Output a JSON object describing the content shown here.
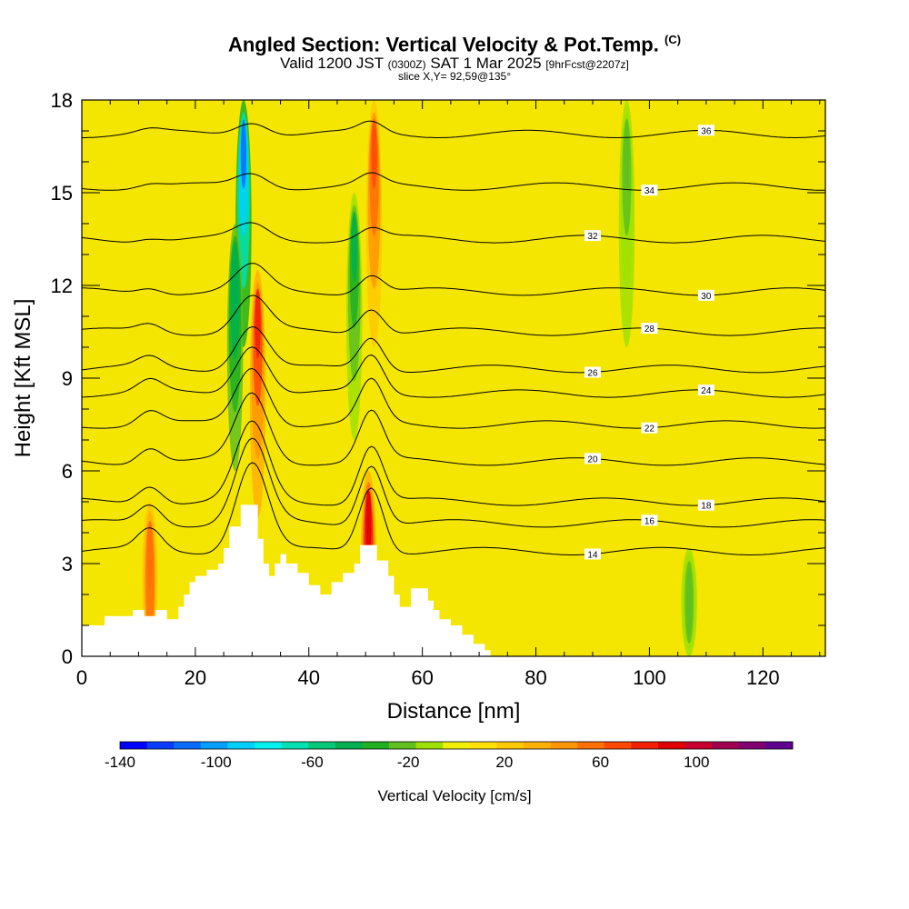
{
  "title": {
    "main": "Angled Section: Vertical Velocity & Pot.Temp.",
    "main_suffix": "(C)",
    "valid_prefix": "Valid 1200 JST",
    "valid_zulu": "(0300Z)",
    "valid_date": "SAT 1 Mar 2025",
    "forecast": "[9hrFcst@2207z]",
    "slice": "slice X,Y= 92,59@135°"
  },
  "chart_data": {
    "type": "heatmap",
    "xlabel": "Distance [nm]",
    "ylabel": "Height [Kft MSL]",
    "xlim": [
      0,
      131
    ],
    "ylim": [
      0,
      18
    ],
    "x_ticks": [
      "0",
      "20",
      "40",
      "60",
      "80",
      "100",
      "120"
    ],
    "x_tick_values": [
      0,
      20,
      40,
      60,
      80,
      100,
      120
    ],
    "y_ticks": [
      "0",
      "3",
      "6",
      "9",
      "12",
      "15",
      "18"
    ],
    "y_tick_values": [
      0,
      3,
      6,
      9,
      12,
      15,
      18
    ],
    "colorbar": {
      "label": "Vertical Velocity [cm/s]",
      "tick_labels": [
        "-140",
        "-100",
        "-60",
        "-20",
        "20",
        "60",
        "100"
      ],
      "tick_values": [
        -140,
        -100,
        -60,
        -20,
        20,
        60,
        100
      ],
      "range": [
        -140,
        140
      ],
      "colors": [
        "#0000ff",
        "#0a3cff",
        "#0a6cff",
        "#00a0ff",
        "#00d0ff",
        "#00f0f0",
        "#00e0b0",
        "#00c878",
        "#00b050",
        "#20b020",
        "#60c020",
        "#a0e000",
        "#f0f000",
        "#ffe000",
        "#ffc800",
        "#ffb000",
        "#ff9600",
        "#ff7000",
        "#ff4800",
        "#f02000",
        "#e00000",
        "#c80030",
        "#a00050",
        "#800070",
        "#600090"
      ]
    },
    "background_color": "#f4e600",
    "updraft_columns": [
      {
        "x": 12,
        "z_top": 5.0,
        "strength": 60
      },
      {
        "x": 31,
        "z_top": 12.5,
        "strength": 80
      },
      {
        "x": 50.5,
        "z_top": 6.0,
        "strength": 90
      },
      {
        "x": 51.5,
        "z_top": 18,
        "strength": 70
      }
    ],
    "downdraft_columns": [
      {
        "x": 28.5,
        "z_top": 18,
        "strength": -110
      },
      {
        "x": 27,
        "z_top": 14,
        "strength": -50
      },
      {
        "x": 48,
        "z_top": 15,
        "strength": -40
      },
      {
        "x": 96,
        "z_top": 18,
        "strength": -25
      },
      {
        "x": 107,
        "z_top": 3.5,
        "strength": -25
      }
    ],
    "theta_contours": [
      {
        "label": "14",
        "height": 3.4
      },
      {
        "label": "16",
        "height": 4.3
      },
      {
        "label": "18",
        "height": 5.0
      },
      {
        "label": "20",
        "height": 6.3
      },
      {
        "label": "22",
        "height": 7.5
      },
      {
        "label": "24",
        "height": 8.5
      },
      {
        "label": "26",
        "height": 9.3
      },
      {
        "label": "28",
        "height": 10.5
      },
      {
        "label": "30",
        "height": 11.8
      },
      {
        "label": "32",
        "height": 13.5
      },
      {
        "label": "34",
        "height": 15.2
      },
      {
        "label": "36",
        "height": 16.9
      }
    ],
    "terrain": [
      [
        0,
        1.0
      ],
      [
        4,
        1.0
      ],
      [
        4,
        1.3
      ],
      [
        9,
        1.3
      ],
      [
        9,
        1.5
      ],
      [
        11,
        1.5
      ],
      [
        11,
        1.3
      ],
      [
        13,
        1.3
      ],
      [
        13,
        1.5
      ],
      [
        15,
        1.5
      ],
      [
        15,
        1.2
      ],
      [
        17,
        1.2
      ],
      [
        17,
        1.6
      ],
      [
        18,
        1.6
      ],
      [
        18,
        2.0
      ],
      [
        19,
        2.0
      ],
      [
        19,
        2.4
      ],
      [
        20,
        2.4
      ],
      [
        20,
        2.6
      ],
      [
        22,
        2.6
      ],
      [
        22,
        2.8
      ],
      [
        24,
        2.8
      ],
      [
        24,
        3.0
      ],
      [
        25,
        3.0
      ],
      [
        25,
        3.5
      ],
      [
        26,
        3.5
      ],
      [
        26,
        4.2
      ],
      [
        28,
        4.2
      ],
      [
        28,
        4.9
      ],
      [
        31,
        4.9
      ],
      [
        31,
        3.8
      ],
      [
        32,
        3.8
      ],
      [
        32,
        3.0
      ],
      [
        33,
        3.0
      ],
      [
        33,
        2.6
      ],
      [
        34,
        2.6
      ],
      [
        34,
        3.0
      ],
      [
        35,
        3.0
      ],
      [
        35,
        3.3
      ],
      [
        36,
        3.3
      ],
      [
        36,
        3.0
      ],
      [
        38,
        3.0
      ],
      [
        38,
        2.7
      ],
      [
        40,
        2.7
      ],
      [
        40,
        2.3
      ],
      [
        42,
        2.3
      ],
      [
        42,
        2.0
      ],
      [
        44,
        2.0
      ],
      [
        44,
        2.4
      ],
      [
        46,
        2.4
      ],
      [
        46,
        2.7
      ],
      [
        48,
        2.7
      ],
      [
        48,
        3.0
      ],
      [
        49,
        3.0
      ],
      [
        49,
        3.6
      ],
      [
        52,
        3.6
      ],
      [
        52,
        3.1
      ],
      [
        54,
        3.1
      ],
      [
        54,
        2.6
      ],
      [
        55,
        2.6
      ],
      [
        55,
        2.0
      ],
      [
        56,
        2.0
      ],
      [
        56,
        1.6
      ],
      [
        58,
        1.6
      ],
      [
        58,
        2.2
      ],
      [
        61,
        2.2
      ],
      [
        61,
        1.8
      ],
      [
        62,
        1.8
      ],
      [
        62,
        1.5
      ],
      [
        63,
        1.5
      ],
      [
        63,
        1.2
      ],
      [
        65,
        1.2
      ],
      [
        65,
        1.0
      ],
      [
        67,
        1.0
      ],
      [
        67,
        0.7
      ],
      [
        69,
        0.7
      ],
      [
        69,
        0.4
      ],
      [
        71,
        0.4
      ],
      [
        71,
        0.2
      ],
      [
        72,
        0.2
      ],
      [
        72,
        0
      ],
      [
        0,
        0
      ]
    ]
  }
}
